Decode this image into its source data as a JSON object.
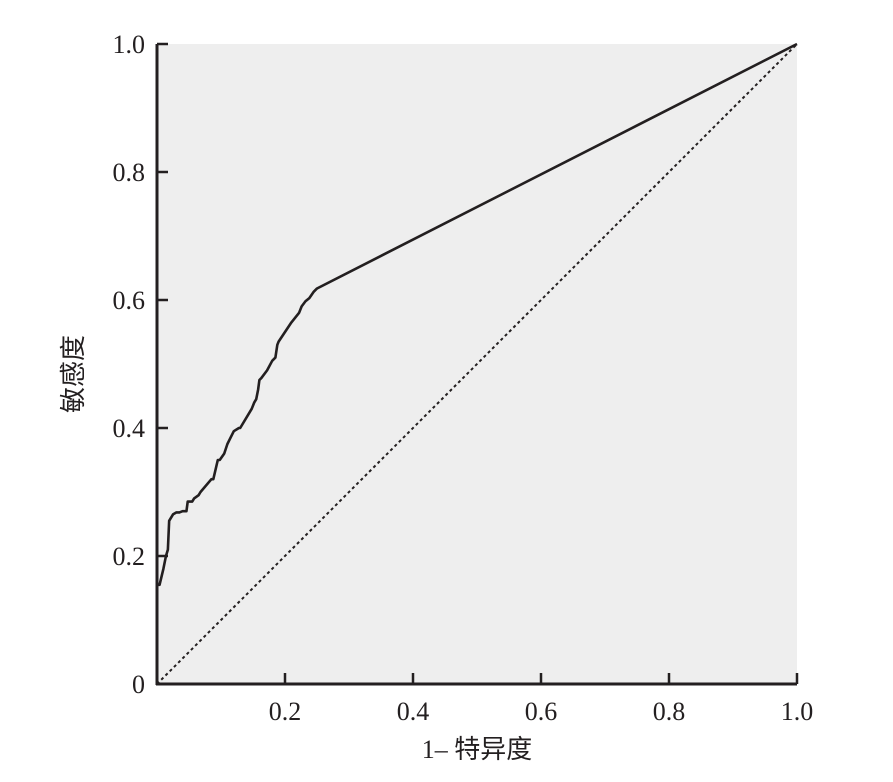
{
  "chart_data": {
    "type": "line",
    "title": "",
    "xlabel": "1– 特异度",
    "ylabel": "敏感度",
    "xlim": [
      0,
      1.0
    ],
    "ylim": [
      0,
      1.0
    ],
    "x_ticks": [
      0.2,
      0.4,
      0.6,
      0.8,
      1.0
    ],
    "x_tick_labels": [
      "0.2",
      "0.4",
      "0.6",
      "0.8",
      "1.0"
    ],
    "y_ticks": [
      0,
      0.2,
      0.4,
      0.6,
      0.8,
      1.0
    ],
    "y_tick_labels": [
      "0",
      "0.2",
      "0.4",
      "0.6",
      "0.8",
      "1.0"
    ],
    "grid": false,
    "legend": "none",
    "plot_background": "#eeeeee",
    "line_color": "#231f20",
    "series": [
      {
        "style": "solid",
        "x": [
          0.0,
          0.004,
          0.01,
          0.014,
          0.017,
          0.019,
          0.025,
          0.03,
          0.035,
          0.04,
          0.046,
          0.048,
          0.055,
          0.058,
          0.065,
          0.068,
          0.085,
          0.088,
          0.095,
          0.098,
          0.105,
          0.11,
          0.115,
          0.12,
          0.128,
          0.13,
          0.148,
          0.152,
          0.155,
          0.158,
          0.16,
          0.163,
          0.172,
          0.18,
          0.185,
          0.188,
          0.19,
          0.2,
          0.21,
          0.222,
          0.226,
          0.232,
          0.238,
          0.245,
          0.25,
          1.0
        ],
        "y": [
          0.155,
          0.155,
          0.18,
          0.2,
          0.21,
          0.255,
          0.265,
          0.268,
          0.268,
          0.27,
          0.27,
          0.285,
          0.285,
          0.29,
          0.295,
          0.3,
          0.32,
          0.32,
          0.35,
          0.35,
          0.36,
          0.375,
          0.385,
          0.395,
          0.4,
          0.4,
          0.43,
          0.44,
          0.445,
          0.46,
          0.475,
          0.478,
          0.49,
          0.505,
          0.51,
          0.53,
          0.535,
          0.55,
          0.565,
          0.58,
          0.59,
          0.598,
          0.603,
          0.613,
          0.618,
          1.0
        ]
      },
      {
        "style": "dotted",
        "x": [
          0.0,
          1.0
        ],
        "y": [
          0.0,
          1.0
        ]
      }
    ]
  }
}
